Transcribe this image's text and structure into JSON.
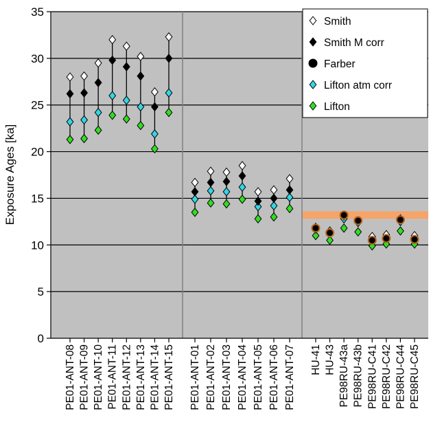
{
  "chart_data": {
    "type": "scatter",
    "ylabel": "Exposure Ages [ka]",
    "xlabel": "",
    "ylim": [
      0,
      35
    ],
    "yticks": [
      0,
      5,
      10,
      15,
      20,
      25,
      30,
      35
    ],
    "grid": true,
    "legend_position": "top-right",
    "categories": [
      "PE01-ANT-08",
      "PE01-ANT-09",
      "PE01-ANT-10",
      "PE01-ANT-11",
      "PE01-ANT-12",
      "PE01-ANT-13",
      "PE01-ANT-14",
      "PE01-ANT-15",
      "PE01-ANT-01",
      "PE01-ANT-02",
      "PE01-ANT-03",
      "PE01-ANT-04",
      "PE01-ANT-05",
      "PE01-ANT-06",
      "PE01-ANT-07",
      "HU-41",
      "HU-43",
      "PE98RU-43a",
      "PE98RU-43b",
      "PE98RU-C41",
      "PE98RU-C42",
      "PE98RU-C44",
      "PE98RU-C45"
    ],
    "groups": [
      {
        "start": 0,
        "count": 8
      },
      {
        "start": 8,
        "count": 7
      },
      {
        "start": 15,
        "count": 8
      }
    ],
    "series": [
      {
        "name": "Smith",
        "marker": "diamond-open",
        "color": "#ffffff",
        "values": [
          28.0,
          28.1,
          29.5,
          32.0,
          31.3,
          30.2,
          26.4,
          32.3,
          16.7,
          17.9,
          17.8,
          18.5,
          15.7,
          15.9,
          17.1,
          11.9,
          11.5,
          13.2,
          12.6,
          10.9,
          11.1,
          12.8,
          11.0
        ]
      },
      {
        "name": "Smith M corr",
        "marker": "diamond-filled",
        "color": "#000000",
        "values": [
          26.2,
          26.3,
          27.4,
          29.8,
          29.1,
          28.1,
          24.8,
          30.0,
          15.7,
          16.7,
          16.8,
          17.4,
          14.7,
          15.0,
          15.9,
          11.8,
          11.4,
          13.1,
          12.6,
          10.5,
          10.7,
          12.7,
          10.6
        ]
      },
      {
        "name": "Farber",
        "marker": "circle",
        "color": "#000000",
        "values": [
          null,
          null,
          null,
          null,
          null,
          null,
          null,
          null,
          null,
          null,
          null,
          null,
          null,
          null,
          null,
          11.8,
          11.3,
          13.2,
          12.6,
          10.5,
          10.7,
          12.7,
          10.6
        ]
      },
      {
        "name": "Lifton atm corr",
        "marker": "diamond-filled",
        "color": "#33d6e6",
        "values": [
          23.2,
          23.4,
          24.2,
          26.0,
          25.5,
          24.8,
          21.9,
          26.3,
          14.9,
          15.8,
          15.7,
          16.2,
          14.1,
          14.2,
          15.1,
          11.7,
          11.3,
          12.8,
          12.4,
          10.8,
          10.9,
          12.5,
          10.8
        ]
      },
      {
        "name": "Lifton",
        "marker": "diamond-filled",
        "color": "#33dd22",
        "values": [
          21.3,
          21.4,
          22.3,
          23.9,
          23.5,
          22.8,
          20.3,
          24.2,
          13.5,
          14.5,
          14.4,
          14.9,
          12.8,
          13.0,
          13.9,
          11.0,
          10.5,
          11.8,
          11.4,
          9.9,
          10.1,
          11.5,
          10.1
        ]
      }
    ],
    "annotations": [
      {
        "type": "band",
        "group": 2,
        "y_from": 12.8,
        "y_to": 13.6,
        "color": "#f5a46a"
      }
    ],
    "plot_background": "#c0c0c0",
    "farber_ring_color": "#b5651d"
  }
}
